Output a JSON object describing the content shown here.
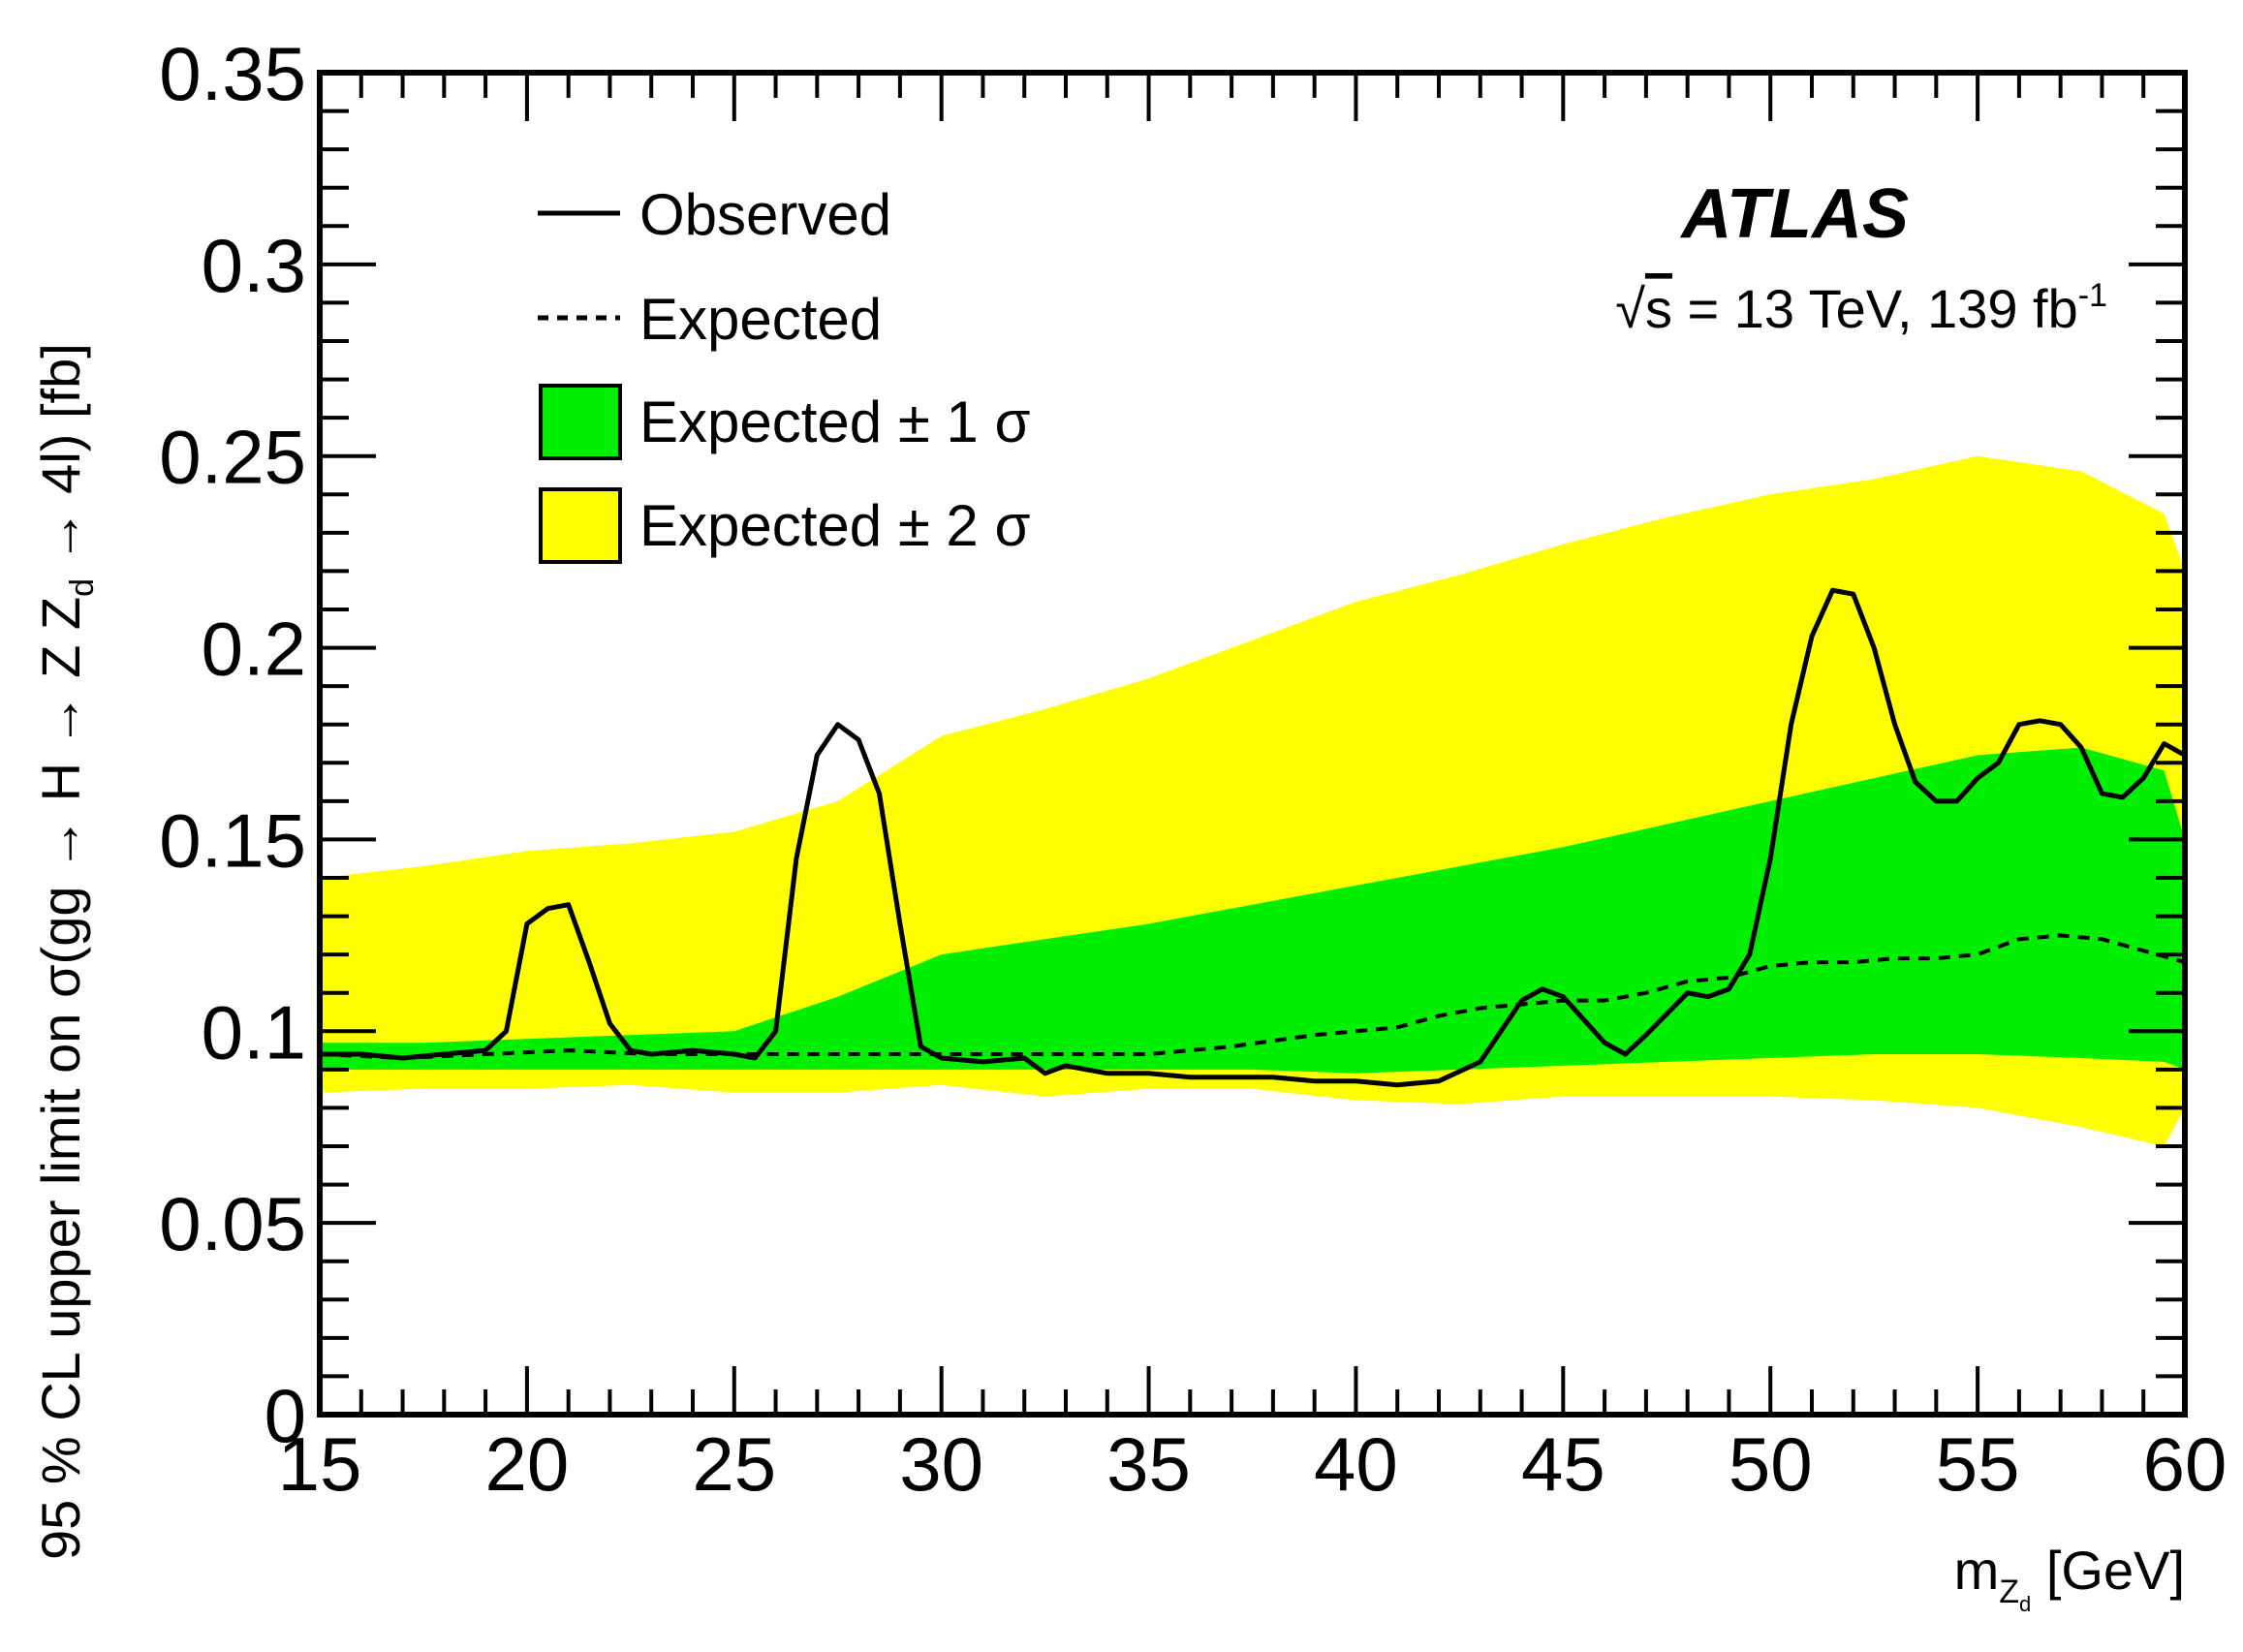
{
  "chart_data": {
    "type": "line",
    "experiment_label": "ATLAS",
    "energy_label": {
      "sqrt_symbol": "√",
      "s_symbol": "s",
      "text": " = 13 TeV, 139 fb",
      "superscript": "-1"
    },
    "xlabel": {
      "main": "m",
      "subscript": "Z",
      "subsubscript": "d",
      "unit": " [GeV]"
    },
    "ylabel": {
      "part1": "95 % CL upper limit on σ(gg → H → Z Z",
      "subscript": "d",
      "part2": " → 4l) [fb]"
    },
    "xlim": [
      15,
      60
    ],
    "ylim": [
      0,
      0.35
    ],
    "x_ticks": [
      "15",
      "20",
      "25",
      "30",
      "35",
      "40",
      "45",
      "50",
      "55",
      "60"
    ],
    "y_ticks": [
      "0",
      "0.05",
      "0.1",
      "0.15",
      "0.2",
      "0.25",
      "0.3",
      "0.35"
    ],
    "legend": [
      {
        "label": "Observed",
        "style": "solid-line"
      },
      {
        "label": "Expected",
        "style": "dashed-line"
      },
      {
        "label": "Expected ± 1 σ",
        "style": "green-box"
      },
      {
        "label": "Expected ± 2 σ",
        "style": "yellow-box"
      }
    ],
    "colors": {
      "band_1sigma": "#00ee00",
      "band_2sigma": "#ffff00",
      "line": "#000000"
    },
    "series": [
      {
        "name": "Observed",
        "points": [
          [
            15,
            0.094
          ],
          [
            16,
            0.094
          ],
          [
            17,
            0.093
          ],
          [
            18,
            0.094
          ],
          [
            19,
            0.095
          ],
          [
            19.5,
            0.1
          ],
          [
            20,
            0.128
          ],
          [
            20.5,
            0.132
          ],
          [
            21,
            0.133
          ],
          [
            21.5,
            0.118
          ],
          [
            22,
            0.102
          ],
          [
            22.5,
            0.095
          ],
          [
            23,
            0.094
          ],
          [
            24,
            0.095
          ],
          [
            25,
            0.094
          ],
          [
            25.5,
            0.093
          ],
          [
            26,
            0.1
          ],
          [
            26.5,
            0.145
          ],
          [
            27,
            0.172
          ],
          [
            27.5,
            0.18
          ],
          [
            28,
            0.176
          ],
          [
            28.5,
            0.162
          ],
          [
            29,
            0.128
          ],
          [
            29.5,
            0.096
          ],
          [
            30,
            0.093
          ],
          [
            31,
            0.092
          ],
          [
            32,
            0.093
          ],
          [
            32.5,
            0.089
          ],
          [
            33,
            0.091
          ],
          [
            34,
            0.089
          ],
          [
            35,
            0.089
          ],
          [
            36,
            0.088
          ],
          [
            37,
            0.088
          ],
          [
            38,
            0.088
          ],
          [
            39,
            0.087
          ],
          [
            40,
            0.087
          ],
          [
            41,
            0.086
          ],
          [
            42,
            0.087
          ],
          [
            43,
            0.092
          ],
          [
            44,
            0.108
          ],
          [
            44.5,
            0.111
          ],
          [
            45,
            0.109
          ],
          [
            46,
            0.097
          ],
          [
            46.5,
            0.094
          ],
          [
            47,
            0.099
          ],
          [
            48,
            0.11
          ],
          [
            48.5,
            0.109
          ],
          [
            49,
            0.111
          ],
          [
            49.5,
            0.12
          ],
          [
            50,
            0.145
          ],
          [
            50.5,
            0.18
          ],
          [
            51,
            0.203
          ],
          [
            51.5,
            0.215
          ],
          [
            52,
            0.214
          ],
          [
            52.5,
            0.2
          ],
          [
            53,
            0.18
          ],
          [
            53.5,
            0.165
          ],
          [
            54,
            0.16
          ],
          [
            54.5,
            0.16
          ],
          [
            55,
            0.166
          ],
          [
            55.5,
            0.17
          ],
          [
            56,
            0.18
          ],
          [
            56.5,
            0.181
          ],
          [
            57,
            0.18
          ],
          [
            57.5,
            0.174
          ],
          [
            58,
            0.162
          ],
          [
            58.5,
            0.161
          ],
          [
            59,
            0.166
          ],
          [
            59.5,
            0.175
          ],
          [
            60,
            0.172
          ]
        ]
      },
      {
        "name": "Expected",
        "points": [
          [
            15,
            0.094
          ],
          [
            17,
            0.093
          ],
          [
            19,
            0.094
          ],
          [
            21,
            0.095
          ],
          [
            23,
            0.094
          ],
          [
            25,
            0.094
          ],
          [
            27,
            0.094
          ],
          [
            29,
            0.094
          ],
          [
            31,
            0.094
          ],
          [
            33,
            0.094
          ],
          [
            35,
            0.094
          ],
          [
            37,
            0.096
          ],
          [
            39,
            0.099
          ],
          [
            40,
            0.1
          ],
          [
            41,
            0.101
          ],
          [
            42,
            0.104
          ],
          [
            43,
            0.106
          ],
          [
            44,
            0.107
          ],
          [
            45,
            0.108
          ],
          [
            46,
            0.108
          ],
          [
            47,
            0.11
          ],
          [
            48,
            0.113
          ],
          [
            49,
            0.114
          ],
          [
            50,
            0.117
          ],
          [
            51,
            0.118
          ],
          [
            52,
            0.118
          ],
          [
            53,
            0.119
          ],
          [
            54,
            0.119
          ],
          [
            55,
            0.12
          ],
          [
            56,
            0.124
          ],
          [
            57,
            0.125
          ],
          [
            58,
            0.124
          ],
          [
            59,
            0.121
          ],
          [
            60,
            0.118
          ]
        ]
      },
      {
        "name": "Expected ± 2 σ",
        "x": [
          15,
          17.5,
          20,
          22.5,
          25,
          27.5,
          30,
          32.5,
          35,
          37.5,
          40,
          42.5,
          45,
          47.5,
          50,
          52.5,
          55,
          57.5,
          59.5,
          60
        ],
        "low": [
          0.084,
          0.085,
          0.085,
          0.086,
          0.084,
          0.084,
          0.086,
          0.083,
          0.085,
          0.085,
          0.082,
          0.081,
          0.083,
          0.083,
          0.083,
          0.082,
          0.08,
          0.075,
          0.07,
          0.08
        ],
        "high": [
          0.14,
          0.143,
          0.147,
          0.149,
          0.152,
          0.16,
          0.177,
          0.184,
          0.192,
          0.202,
          0.212,
          0.219,
          0.227,
          0.234,
          0.24,
          0.244,
          0.25,
          0.246,
          0.235,
          0.22
        ]
      },
      {
        "name": "Expected ± 1 σ",
        "x": [
          15,
          17.5,
          20,
          22.5,
          25,
          27.5,
          30,
          32.5,
          35,
          37.5,
          40,
          42.5,
          45,
          47.5,
          50,
          52.5,
          55,
          57.5,
          59.5,
          60
        ],
        "low": [
          0.09,
          0.09,
          0.09,
          0.09,
          0.09,
          0.09,
          0.09,
          0.09,
          0.09,
          0.09,
          0.089,
          0.09,
          0.091,
          0.092,
          0.093,
          0.094,
          0.094,
          0.093,
          0.092,
          0.09
        ],
        "high": [
          0.097,
          0.097,
          0.098,
          0.099,
          0.1,
          0.109,
          0.12,
          0.124,
          0.128,
          0.133,
          0.138,
          0.143,
          0.148,
          0.154,
          0.16,
          0.166,
          0.172,
          0.174,
          0.168,
          0.15
        ]
      }
    ]
  }
}
